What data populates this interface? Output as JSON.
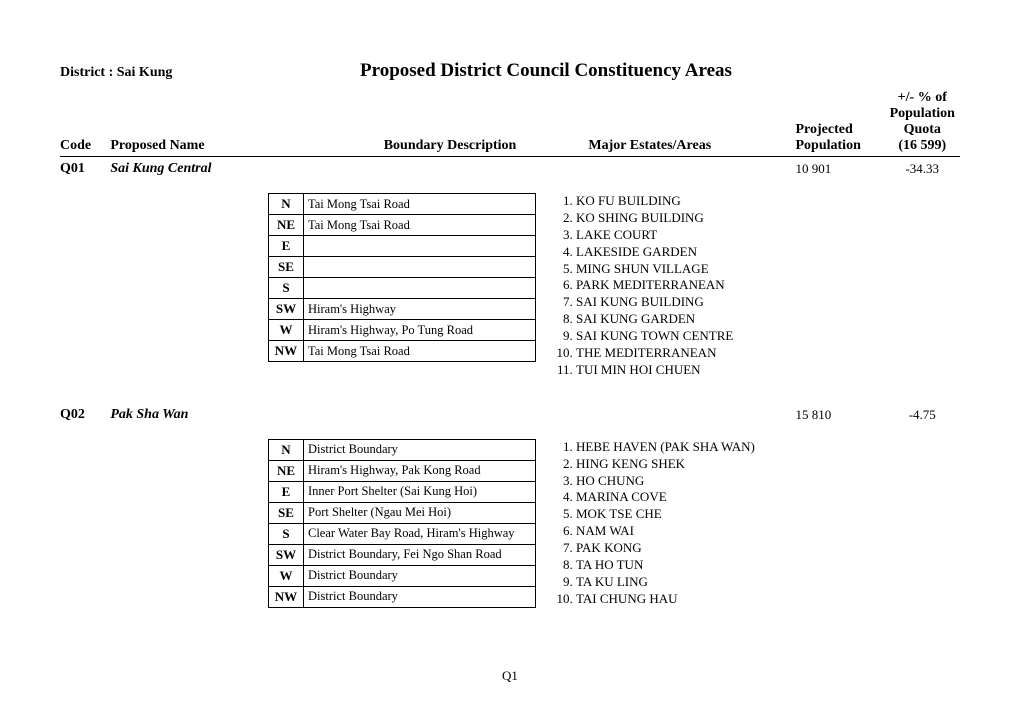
{
  "district_label": "District : Sai Kung",
  "page_title": "Proposed District Council Constituency Areas",
  "columns": {
    "code": "Code",
    "name": "Proposed Name",
    "boundary": "Boundary Description",
    "estates": "Major Estates/Areas",
    "pop": "Projected Population",
    "quota_l1": "+/- % of",
    "quota_l2": "Population",
    "quota_l3": "Quota",
    "quota_l4": "(16 599)"
  },
  "sections": [
    {
      "code": "Q01",
      "name": "Sai Kung Central",
      "population": "10 901",
      "quota": "-34.33",
      "boundaries": [
        {
          "dir": "N",
          "desc": "Tai Mong Tsai Road"
        },
        {
          "dir": "NE",
          "desc": "Tai Mong Tsai Road"
        },
        {
          "dir": "E",
          "desc": ""
        },
        {
          "dir": "SE",
          "desc": ""
        },
        {
          "dir": "S",
          "desc": ""
        },
        {
          "dir": "SW",
          "desc": "Hiram's Highway"
        },
        {
          "dir": "W",
          "desc": "Hiram's Highway, Po Tung Road"
        },
        {
          "dir": "NW",
          "desc": "Tai Mong Tsai Road"
        }
      ],
      "estates": [
        "KO FU BUILDING",
        "KO SHING BUILDING",
        "LAKE COURT",
        "LAKESIDE GARDEN",
        "MING SHUN VILLAGE",
        "PARK MEDITERRANEAN",
        "SAI KUNG BUILDING",
        "SAI KUNG GARDEN",
        "SAI KUNG TOWN CENTRE",
        "THE MEDITERRANEAN",
        "TUI MIN HOI CHUEN"
      ]
    },
    {
      "code": "Q02",
      "name": "Pak Sha Wan",
      "population": "15 810",
      "quota": "-4.75",
      "boundaries": [
        {
          "dir": "N",
          "desc": "District Boundary"
        },
        {
          "dir": "NE",
          "desc": "Hiram's Highway, Pak Kong Road"
        },
        {
          "dir": "E",
          "desc": "Inner Port Shelter (Sai Kung Hoi)"
        },
        {
          "dir": "SE",
          "desc": "Port Shelter (Ngau Mei Hoi)"
        },
        {
          "dir": "S",
          "desc": "Clear Water Bay Road, Hiram's Highway"
        },
        {
          "dir": "SW",
          "desc": "District Boundary, Fei Ngo Shan Road"
        },
        {
          "dir": "W",
          "desc": "District Boundary"
        },
        {
          "dir": "NW",
          "desc": "District Boundary"
        }
      ],
      "estates": [
        "HEBE HAVEN (PAK SHA WAN)",
        "HING KENG SHEK",
        "HO CHUNG",
        "MARINA COVE",
        "MOK TSE CHE",
        "NAM WAI",
        "PAK KONG",
        "TA HO TUN",
        "TA KU LING",
        "TAI CHUNG HAU"
      ]
    }
  ],
  "page_number": "Q1"
}
